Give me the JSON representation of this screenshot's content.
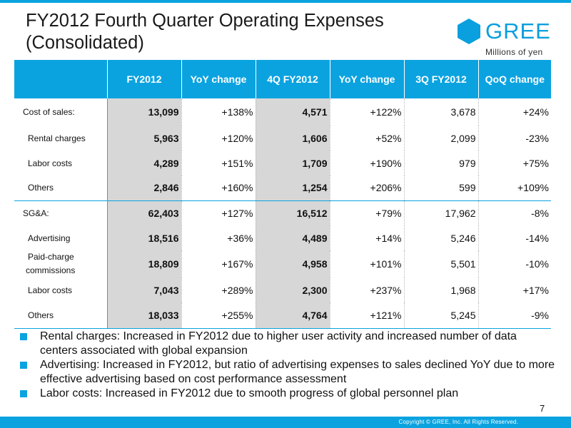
{
  "title_line1": "FY2012 Fourth Quarter Operating Expenses",
  "title_line2": "(Consolidated)",
  "logo": {
    "text": "GREE",
    "icon": "gree-hexagon-icon",
    "color": "#0aa3e0"
  },
  "unit": "Millions of  yen",
  "columns": [
    "FY2012",
    "YoY change",
    "4Q FY2012",
    "YoY change",
    "3Q FY2012",
    "QoQ change"
  ],
  "rows": [
    {
      "label": "Cost of sales:",
      "values": [
        "13,099",
        "+138%",
        "4,571",
        "+122%",
        "3,678",
        "+24%"
      ]
    },
    {
      "label": "Rental charges",
      "values": [
        "5,963",
        "+120%",
        "1,606",
        "+52%",
        "2,099",
        "-23%"
      ]
    },
    {
      "label": "Labor costs",
      "values": [
        "4,289",
        "+151%",
        "1,709",
        "+190%",
        "979",
        "+75%"
      ]
    },
    {
      "label": "Others",
      "values": [
        "2,846",
        "+160%",
        "1,254",
        "+206%",
        "599",
        "+109%"
      ]
    },
    {
      "label": "SG&A:",
      "values": [
        "62,403",
        "+127%",
        "16,512",
        "+79%",
        "17,962",
        "-8%"
      ]
    },
    {
      "label": "Advertising",
      "values": [
        "18,516",
        "+36%",
        "4,489",
        "+14%",
        "5,246",
        "-14%"
      ]
    },
    {
      "label_line1": "Paid-charge",
      "label_line2": "commissions",
      "values": [
        "18,809",
        "+167%",
        "4,958",
        "+101%",
        "5,501",
        "-10%"
      ]
    },
    {
      "label": "Labor costs",
      "values": [
        "7,043",
        "+289%",
        "2,300",
        "+237%",
        "1,968",
        "+17%"
      ]
    },
    {
      "label": "Others",
      "values": [
        "18,033",
        "+255%",
        "4,764",
        "+121%",
        "5,245",
        "-9%"
      ]
    }
  ],
  "notes": [
    "Rental charges: Increased in FY2012 due to higher user activity and increased number of data centers associated with global expansion",
    "Advertising: Increased in FY2012, but ratio of advertising expenses to sales declined YoY due to more effective advertising based on cost performance assessment",
    "Labor costs: Increased in FY2012 due to smooth progress of global personnel plan"
  ],
  "page_number": "7",
  "copyright": "Copyright © GREE, Inc. All Rights Reserved.",
  "accent_color": "#0aa3e0"
}
